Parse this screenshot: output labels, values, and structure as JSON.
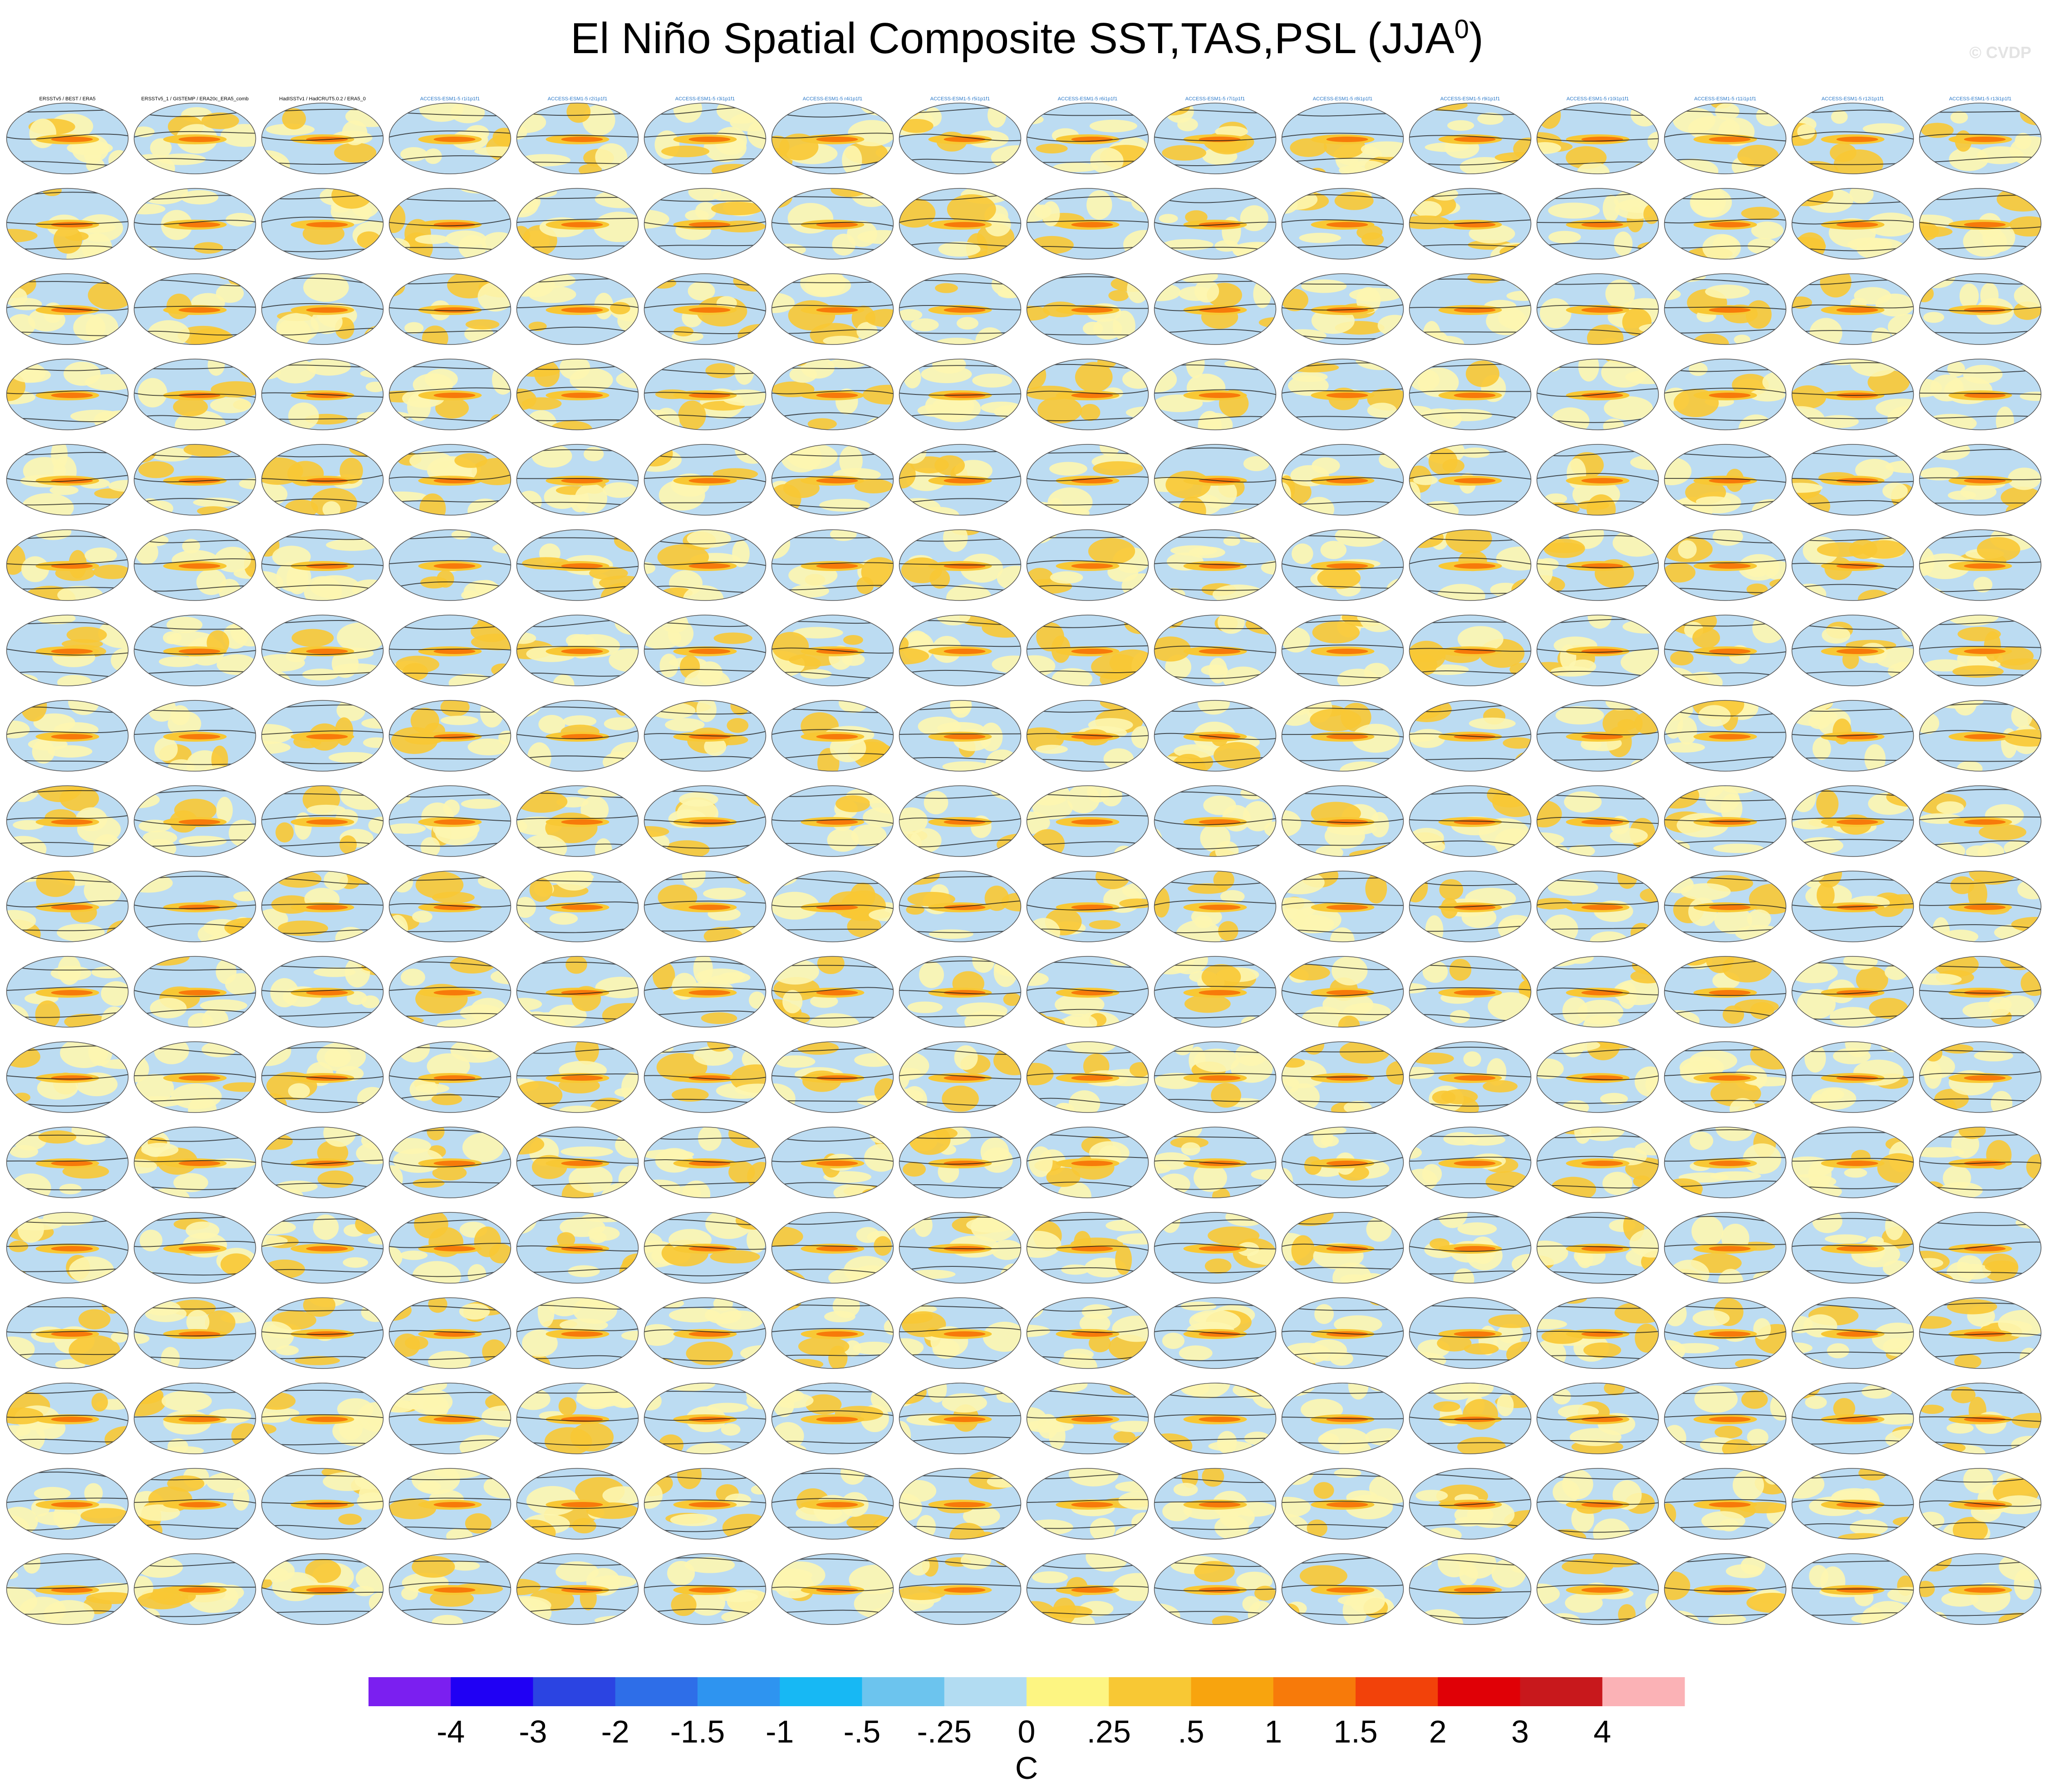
{
  "title": "El Niño Spatial Composite SST,TAS,PSL (JJA",
  "title_sup": "0",
  "title_close": ")",
  "watermark": "© CVDP",
  "panel_labels": [
    "ERSSTv5 / BEST / ERA5",
    "ERSSTv5_1 / GISTEMP / ERA20c_ERA5_comb",
    "HadISSTv1 / HadCRUT5.0.2 / ERA5_0",
    "ACCESS-ESM1-5 r1i1p1f1",
    "ACCESS-ESM1-5 r2i1p1f1",
    "ACCESS-ESM1-5 r3i1p1f1",
    "ACCESS-ESM1-5 r4i1p1f1",
    "ACCESS-ESM1-5 r5i1p1f1",
    "ACCESS-ESM1-5 r6i1p1f1",
    "ACCESS-ESM1-5 r7i1p1f1",
    "ACCESS-ESM1-5 r8i1p1f1",
    "ACCESS-ESM1-5 r9i1p1f1",
    "ACCESS-ESM1-5 r10i1p1f1",
    "ACCESS-ESM1-5 r11i1p1f1",
    "ACCESS-ESM1-5 r12i1p1f1",
    "ACCESS-ESM1-5 r13i1p1f1"
  ],
  "panel_grid": {
    "rows": 18,
    "cols": 16
  },
  "colorbar": {
    "labels": [
      "-4",
      "-3",
      "-2",
      "-1.5",
      "-1",
      "-.5",
      "-.25",
      "0",
      ".25",
      ".5",
      "1",
      "1.5",
      "2",
      "3",
      "4"
    ],
    "colors": [
      "#7b1ff0",
      "#2000f4",
      "#2b44e2",
      "#2e6ee8",
      "#2e94f0",
      "#17b8f4",
      "#6cc4ee",
      "#b2dcf2",
      "#fdf582",
      "#f8c834",
      "#f8a40e",
      "#f77a0a",
      "#f2420a",
      "#e00006",
      "#c8181c",
      "#fbb2b6"
    ],
    "unit": "C"
  },
  "map_colors": {
    "ocean_neg": "#bcdcf2",
    "neutral": "#fdf6b0",
    "warm": "#f8c834",
    "hot": "#f77a0a",
    "contour": "#1a1a1a"
  }
}
